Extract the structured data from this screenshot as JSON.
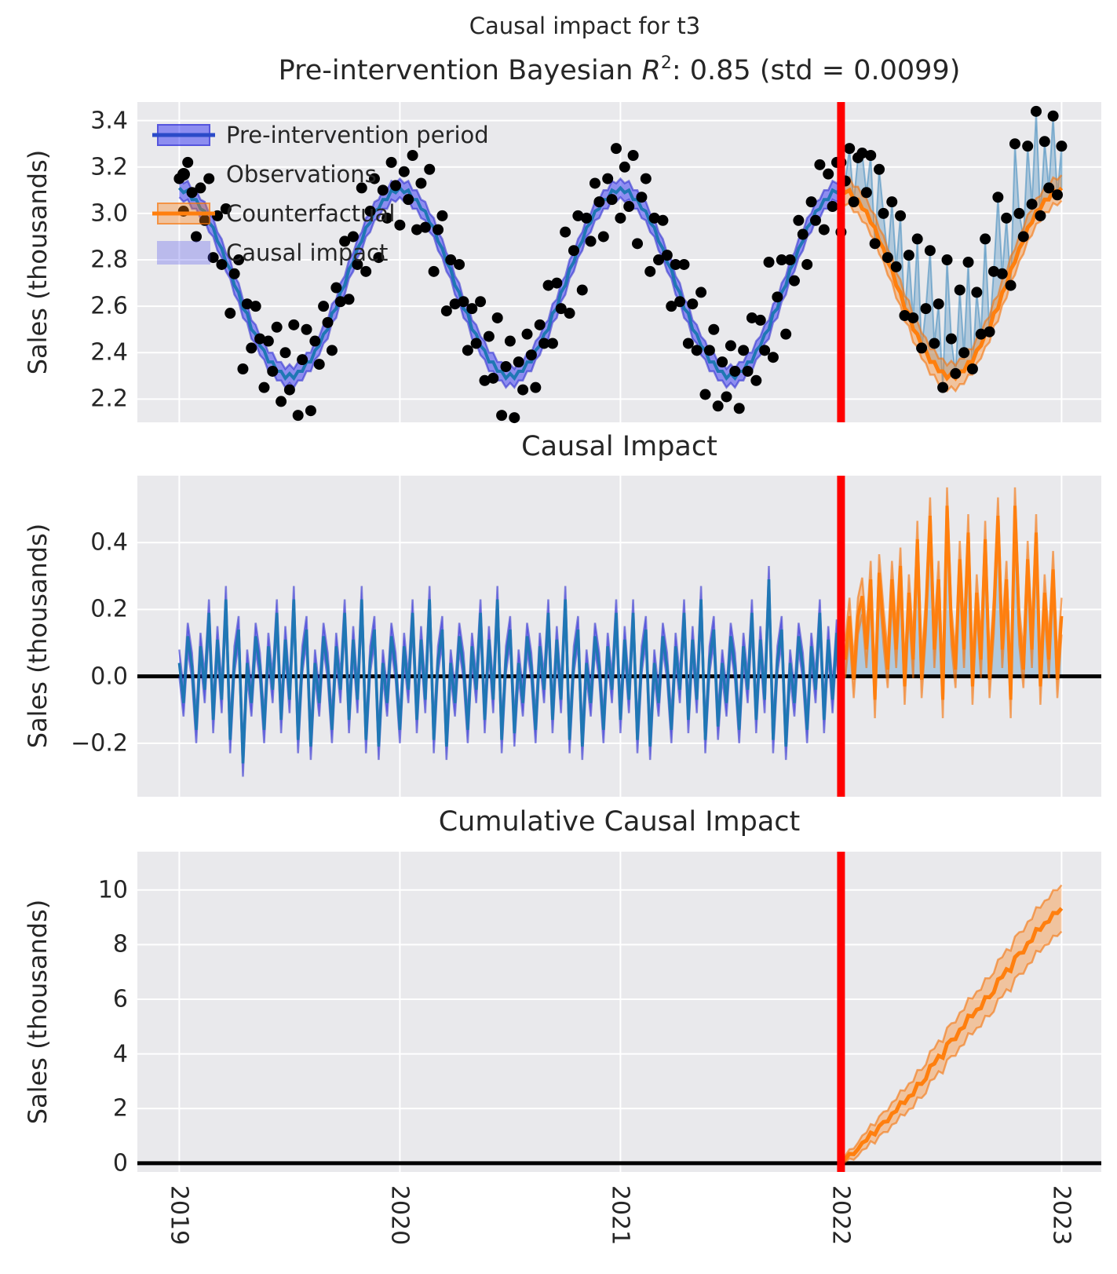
{
  "suptitle": "Causal impact for t3",
  "colors": {
    "figure_bg": "#ffffff",
    "axes_bg": "#e9e9ec",
    "grid": "#ffffff",
    "text": "#262626",
    "observations": "#000000",
    "pre_line": "#1f77b4",
    "pre_band_fill": "rgba(15,15,245,0.42)",
    "pre_band_edge": "rgba(40,40,205,0.55)",
    "legend_pre_line": "#2b4bc8",
    "counterfactual_line": "#ff7f0e",
    "cf_band_fill": "rgba(255,127,14,0.35)",
    "cf_band_edge": "rgba(245,115,10,0.6)",
    "causal_fill": "rgba(31,119,180,0.28)",
    "causal_fill_edge": "rgba(31,119,180,0.45)",
    "intervention_line": "#ff0000",
    "zero_line": "#000000"
  },
  "legend": {
    "items": [
      {
        "label": "Pre-intervention period",
        "type": "band-line"
      },
      {
        "label": "Observations",
        "type": "dot"
      },
      {
        "label": "Counterfactual",
        "type": "band-line"
      },
      {
        "label": "Causal impact",
        "type": "patch"
      }
    ]
  },
  "axis": {
    "xlim": [
      2018.81,
      2023.18
    ],
    "x_tick_values": [
      2019,
      2020,
      2021,
      2022,
      2023
    ],
    "x_tick_labels": [
      "2019",
      "2020",
      "2021",
      "2022",
      "2023"
    ],
    "intervention_x": 2022
  },
  "panels": [
    {
      "title_prefix": "Pre-intervention Bayesian ",
      "title_math_r": "R",
      "title_sup": "2",
      "title_suffix": ": 0.85 (std = 0.0099)",
      "ylabel": "Sales (thousands)",
      "ylim": [
        2.1,
        3.48
      ],
      "ytick_values": [
        2.2,
        2.4,
        2.6,
        2.8,
        3.0,
        3.2,
        3.4
      ],
      "ytick_labels": [
        "2.2",
        "2.4",
        "2.6",
        "2.8",
        "3.0",
        "3.2",
        "3.4"
      ]
    },
    {
      "title": "Causal Impact",
      "ylabel": "Sales (thousands)",
      "ylim": [
        -0.36,
        0.6
      ],
      "ytick_values": [
        -0.2,
        0.0,
        0.2,
        0.4
      ],
      "ytick_labels": [
        "−0.2",
        "0.0",
        "0.2",
        "0.4"
      ]
    },
    {
      "title": "Cumulative Causal Impact",
      "ylabel": "Sales (thousands)",
      "ylim": [
        -0.32,
        11.4
      ],
      "ytick_values": [
        0,
        2,
        4,
        6,
        8,
        10
      ],
      "ytick_labels": [
        "0",
        "2",
        "4",
        "6",
        "8",
        "10"
      ]
    }
  ],
  "chart_data": {
    "type": "line",
    "frequency": "weekly",
    "x_step_years": 0.0192307692,
    "pre": {
      "x_start": 2019,
      "n": 157,
      "observations": [
        3.15,
        3.01,
        3.22,
        3.09,
        2.9,
        3.11,
        2.97,
        3.15,
        2.81,
        2.99,
        2.78,
        3.02,
        2.57,
        2.74,
        2.8,
        2.33,
        2.61,
        2.42,
        2.6,
        2.46,
        2.25,
        2.45,
        2.32,
        2.51,
        2.19,
        2.4,
        2.24,
        2.52,
        2.13,
        2.37,
        2.5,
        2.15,
        2.45,
        2.35,
        2.6,
        2.53,
        2.41,
        2.68,
        2.62,
        2.88,
        2.63,
        2.9,
        2.78,
        3.11,
        2.75,
        3.01,
        3.15,
        2.81,
        3.1,
        2.98,
        3.22,
        3.12,
        2.95,
        3.18,
        3.06,
        3.25,
        2.93,
        3.13,
        2.94,
        3.19,
        2.75,
        2.93,
        2.99,
        2.58,
        2.8,
        2.61,
        2.78,
        2.62,
        2.41,
        2.59,
        2.44,
        2.62,
        2.28,
        2.47,
        2.29,
        2.55,
        2.13,
        2.34,
        2.45,
        2.12,
        2.36,
        2.24,
        2.48,
        2.39,
        2.25,
        2.52,
        2.44,
        2.69,
        2.44,
        2.7,
        2.59,
        2.92,
        2.57,
        2.84,
        2.99,
        2.67,
        2.98,
        2.88,
        3.13,
        3.05,
        2.9,
        3.15,
        3.06,
        3.28,
        2.98,
        3.2,
        3.03,
        3.25,
        2.87,
        3.07,
        3.15,
        2.75,
        2.98,
        2.8,
        2.97,
        2.82,
        2.6,
        2.78,
        2.62,
        2.78,
        2.44,
        2.61,
        2.41,
        2.66,
        2.22,
        2.41,
        2.5,
        2.17,
        2.36,
        2.21,
        2.43,
        2.32,
        2.16,
        2.41,
        2.32,
        2.55,
        2.28,
        2.54,
        2.41,
        2.79,
        2.38,
        2.64,
        2.8,
        2.48,
        2.8,
        2.71,
        2.97,
        2.91,
        2.78,
        3.05,
        2.97,
        3.21,
        2.93,
        3.17,
        3.03,
        3.22,
        2.92
      ],
      "fit_mean": [
        3.11,
        3.09,
        3.1,
        3.06,
        3.06,
        3.02,
        3.01,
        2.96,
        2.94,
        2.88,
        2.85,
        2.79,
        2.76,
        2.69,
        2.66,
        2.59,
        2.57,
        2.5,
        2.48,
        2.43,
        2.41,
        2.36,
        2.36,
        2.32,
        2.32,
        2.29,
        2.31,
        2.29,
        2.32,
        2.32,
        2.36,
        2.36,
        2.41,
        2.43,
        2.48,
        2.5,
        2.57,
        2.59,
        2.66,
        2.69,
        2.76,
        2.79,
        2.85,
        2.88,
        2.94,
        2.96,
        3.01,
        3.02,
        3.06,
        3.06,
        3.1,
        3.09,
        3.11,
        3.09,
        3.1,
        3.06,
        3.06,
        3.02,
        3.01,
        2.96,
        2.94,
        2.88,
        2.85,
        2.79,
        2.76,
        2.69,
        2.66,
        2.59,
        2.57,
        2.5,
        2.48,
        2.43,
        2.41,
        2.36,
        2.36,
        2.32,
        2.32,
        2.29,
        2.31,
        2.29,
        2.32,
        2.32,
        2.36,
        2.36,
        2.41,
        2.43,
        2.48,
        2.5,
        2.57,
        2.59,
        2.66,
        2.69,
        2.76,
        2.79,
        2.85,
        2.88,
        2.94,
        2.96,
        3.01,
        3.02,
        3.06,
        3.06,
        3.1,
        3.09,
        3.11,
        3.09,
        3.1,
        3.06,
        3.06,
        3.02,
        3.01,
        2.96,
        2.94,
        2.88,
        2.85,
        2.79,
        2.76,
        2.69,
        2.66,
        2.59,
        2.57,
        2.5,
        2.48,
        2.43,
        2.41,
        2.36,
        2.36,
        2.32,
        2.32,
        2.29,
        2.31,
        2.29,
        2.32,
        2.32,
        2.36,
        2.36,
        2.41,
        2.43,
        2.48,
        2.5,
        2.57,
        2.59,
        2.66,
        2.69,
        2.76,
        2.79,
        2.85,
        2.88,
        2.94,
        2.96,
        3.01,
        3.02,
        3.06,
        3.06,
        3.1,
        3.09,
        3.11
      ],
      "fit_hdi_halfwidth": 0.04
    },
    "post": {
      "x_start": 2022,
      "n": 53,
      "observations": [
        3.22,
        3.14,
        3.28,
        3.05,
        3.24,
        3.26,
        3.09,
        3.25,
        2.87,
        3.19,
        3.0,
        2.81,
        3.05,
        2.77,
        2.99,
        2.56,
        2.82,
        2.55,
        2.89,
        2.42,
        2.59,
        2.84,
        2.44,
        2.61,
        2.25,
        2.8,
        2.46,
        2.31,
        2.67,
        2.4,
        2.79,
        2.33,
        2.66,
        2.48,
        2.89,
        2.49,
        2.75,
        3.07,
        2.74,
        2.98,
        2.69,
        3.3,
        3.0,
        2.9,
        3.29,
        3.04,
        3.44,
        2.99,
        3.31,
        3.11,
        3.42,
        3.08,
        3.29
      ],
      "counterfactual_mean": [
        3.11,
        3.09,
        3.1,
        3.06,
        3.06,
        3.02,
        3.01,
        2.96,
        2.94,
        2.88,
        2.85,
        2.79,
        2.76,
        2.69,
        2.66,
        2.59,
        2.57,
        2.5,
        2.48,
        2.43,
        2.41,
        2.36,
        2.36,
        2.32,
        2.32,
        2.29,
        2.31,
        2.29,
        2.32,
        2.32,
        2.36,
        2.36,
        2.41,
        2.43,
        2.48,
        2.5,
        2.57,
        2.59,
        2.66,
        2.69,
        2.76,
        2.79,
        2.85,
        2.88,
        2.94,
        2.96,
        3.01,
        3.02,
        3.06,
        3.06,
        3.1,
        3.09,
        3.11
      ],
      "cf_hdi_halfwidth": 0.055,
      "cumulative_hdi_end_halfwidth": 0.85
    }
  }
}
